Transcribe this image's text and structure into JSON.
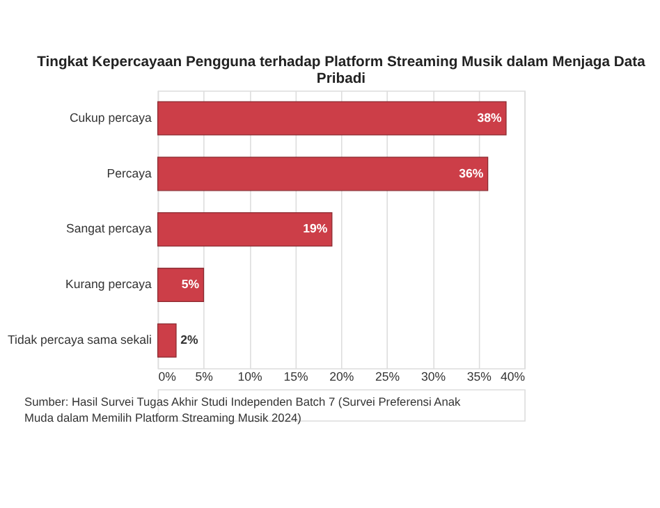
{
  "chart_data": {
    "type": "bar",
    "orientation": "horizontal",
    "title": [
      "Tingkat Kepercayaan Pengguna terhadap Platform Streaming Musik dalam Menjaga Data",
      "Pribadi"
    ],
    "categories": [
      "Cukup percaya",
      "Percaya",
      "Sangat percaya",
      "Kurang percaya",
      "Tidak percaya sama sekali"
    ],
    "values": [
      38,
      36,
      19,
      5,
      2
    ],
    "value_labels": [
      "38%",
      "36%",
      "19%",
      "5%",
      "2%"
    ],
    "color": "#cc3e48",
    "xlim": [
      0,
      40
    ],
    "xticks": [
      {
        "value": 0,
        "label": "0%"
      },
      {
        "value": 5,
        "label": "5%"
      },
      {
        "value": 10,
        "label": "10%"
      },
      {
        "value": 15,
        "label": "15%"
      },
      {
        "value": 20,
        "label": "20%"
      },
      {
        "value": 25,
        "label": "25%"
      },
      {
        "value": 30,
        "label": "30%"
      },
      {
        "value": 35,
        "label": "35%"
      },
      {
        "value": 40,
        "label": "40%"
      }
    ],
    "grid": "x",
    "annotations": [
      "Sumber: Hasil Survei Tugas Akhir Studi Independen Batch 7 (Survei Preferensi Anak",
      "Muda dalam Memilih Platform Streaming Musik 2024)"
    ]
  }
}
